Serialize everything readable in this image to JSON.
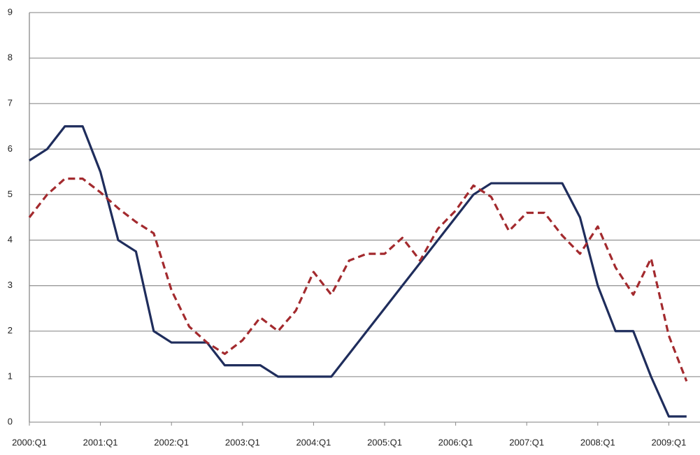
{
  "chart_data": {
    "type": "line",
    "categories": [
      "2000:Q1",
      null,
      null,
      null,
      "2001:Q1",
      null,
      null,
      null,
      "2002:Q1",
      null,
      null,
      null,
      "2003:Q1",
      null,
      null,
      null,
      "2004:Q1",
      null,
      null,
      null,
      "2005:Q1",
      null,
      null,
      null,
      "2006:Q1",
      null,
      null,
      null,
      "2007:Q1",
      null,
      null,
      null,
      "2008:Q1",
      null,
      null,
      null,
      "2009:Q1",
      null
    ],
    "series": [
      {
        "color": "#1f2d5c",
        "dash": false,
        "values": [
          5.75,
          6.0,
          6.5,
          6.5,
          5.5,
          4.0,
          3.75,
          2.0,
          1.75,
          1.75,
          1.75,
          1.25,
          1.25,
          1.25,
          1.0,
          1.0,
          1.0,
          1.0,
          1.5,
          2.0,
          2.5,
          3.0,
          3.5,
          4.0,
          4.5,
          5.0,
          5.25,
          5.25,
          5.25,
          5.25,
          5.25,
          4.5,
          3.0,
          2.0,
          2.0,
          1.0,
          0.125,
          0.125
        ]
      },
      {
        "color": "#a32a2e",
        "dash": true,
        "values": [
          4.5,
          5.0,
          5.35,
          5.35,
          5.05,
          4.7,
          4.4,
          4.15,
          2.9,
          2.1,
          1.75,
          1.5,
          1.8,
          2.3,
          2.0,
          2.45,
          3.3,
          2.8,
          3.55,
          3.7,
          3.7,
          4.05,
          3.55,
          4.25,
          4.65,
          5.2,
          4.95,
          4.2,
          4.6,
          4.6,
          4.1,
          3.7,
          4.3,
          3.4,
          2.8,
          3.6,
          1.9,
          0.9
        ]
      }
    ],
    "ylim": [
      0,
      9
    ],
    "yticks": [
      0,
      1,
      2,
      3,
      4,
      5,
      6,
      7,
      8,
      9
    ],
    "grid": true
  }
}
